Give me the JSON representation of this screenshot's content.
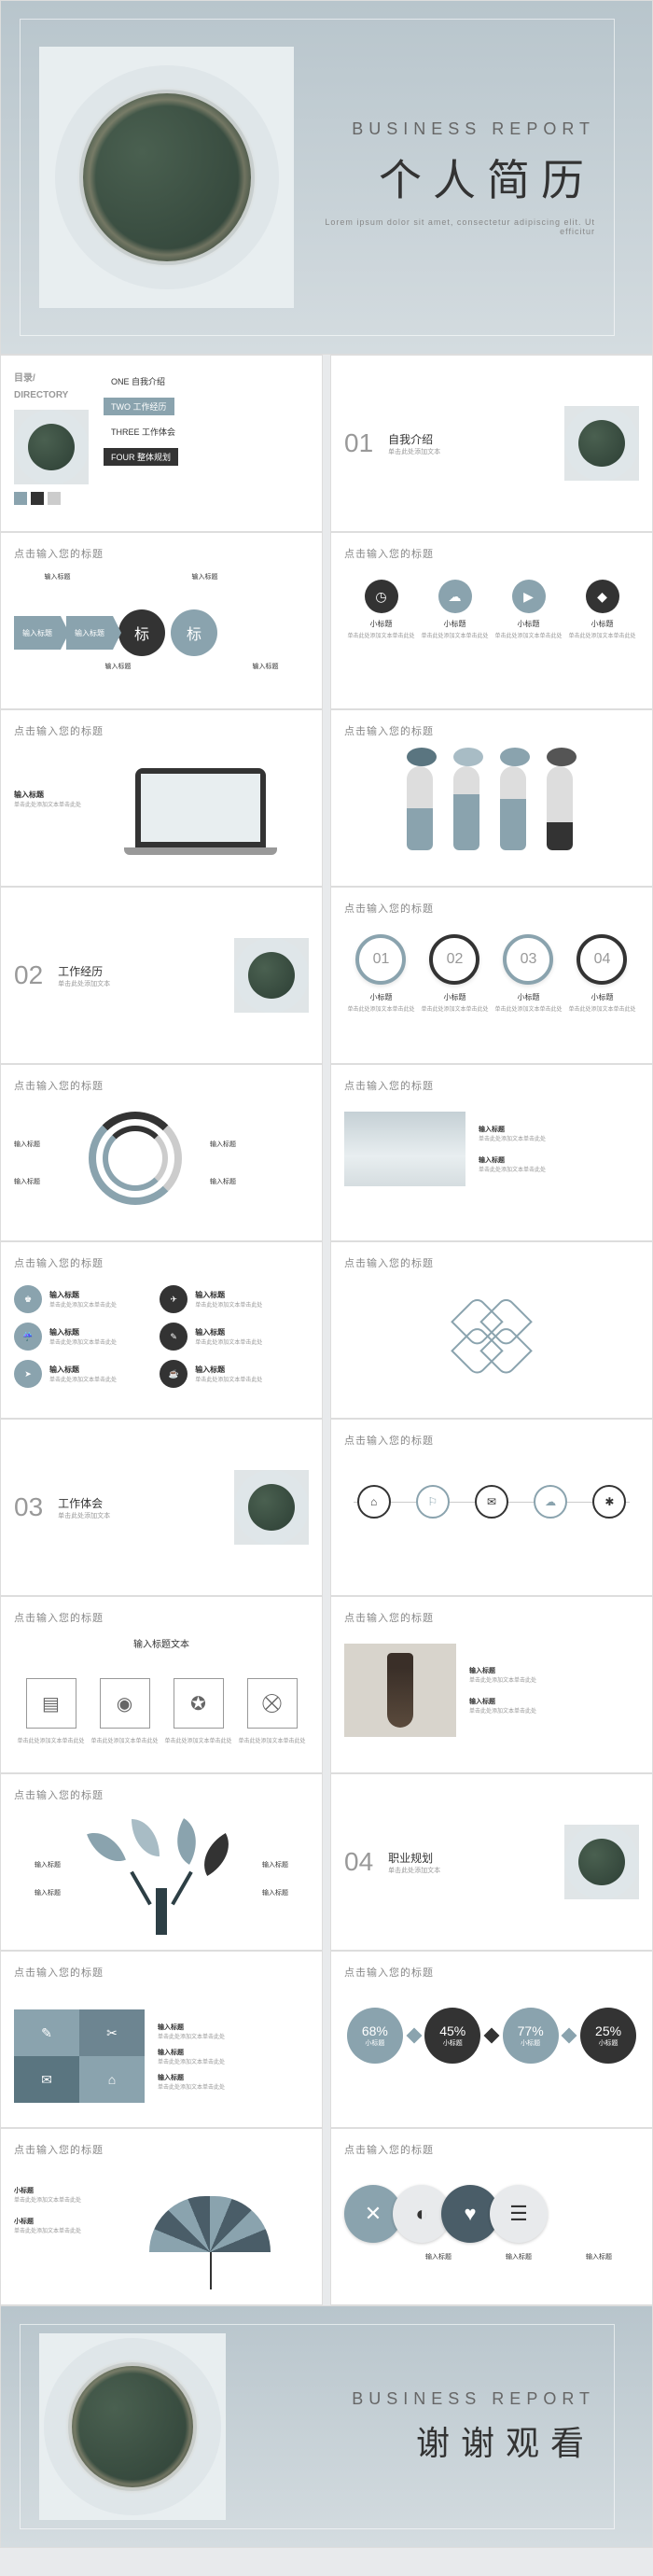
{
  "colors": {
    "primary": "#8aa3ae",
    "dark": "#333333",
    "light": "#cccccc",
    "bg": "#e8eaec"
  },
  "hero": {
    "subtitle": "BUSINESS REPORT",
    "title": "个人简历",
    "lorem": "Lorem ipsum dolor sit amet, consectetur adipiscing elit. Ut efficitur"
  },
  "directory": {
    "title": "目录/",
    "sub": "DIRECTORY",
    "items": [
      {
        "num": "ONE",
        "label": "自我介绍"
      },
      {
        "num": "TWO",
        "label": "工作经历"
      },
      {
        "num": "THREE",
        "label": "工作体会"
      },
      {
        "num": "FOUR",
        "label": "整体规划"
      }
    ]
  },
  "sections": [
    {
      "num": "01",
      "title": "自我介绍",
      "desc": "单击此处添加文本"
    },
    {
      "num": "02",
      "title": "工作经历",
      "desc": "单击此处添加文本"
    },
    {
      "num": "03",
      "title": "工作体会",
      "desc": "单击此处添加文本"
    },
    {
      "num": "04",
      "title": "职业规划",
      "desc": "单击此处添加文本"
    }
  ],
  "slideTitle": "点击输入您的标题",
  "labels": {
    "input": "输入标题",
    "desc": "单击此处添加文本单击此处",
    "small": "小标题",
    "textTitle": "输入标题文本"
  },
  "arrowFlow": [
    "输入标题",
    "输入标题",
    "标",
    "标"
  ],
  "iconRow1": [
    {
      "icon": "◷",
      "color": "#333333",
      "label": "小标题"
    },
    {
      "icon": "☁",
      "color": "#8aa3ae",
      "label": "小标题"
    },
    {
      "icon": "▶",
      "color": "#8aa3ae",
      "label": "小标题"
    },
    {
      "icon": "◆",
      "color": "#333333",
      "label": "小标题"
    }
  ],
  "pills": [
    {
      "height": 90,
      "fill": 45,
      "color": "#8aa3ae",
      "cap": "#5a7580"
    },
    {
      "height": 90,
      "fill": 60,
      "color": "#8aa3ae",
      "cap": "#a8bcc5"
    },
    {
      "height": 90,
      "fill": 55,
      "color": "#8aa3ae",
      "cap": "#8aa3ae"
    },
    {
      "height": 90,
      "fill": 30,
      "color": "#333333",
      "cap": "#555555"
    }
  ],
  "numCircles": [
    {
      "num": "01",
      "color": "#8aa3ae"
    },
    {
      "num": "02",
      "color": "#333333"
    },
    {
      "num": "03",
      "color": "#8aa3ae"
    },
    {
      "num": "04",
      "color": "#333333"
    }
  ],
  "iconGrid": [
    {
      "icon": "♚",
      "color": "#8aa3ae"
    },
    {
      "icon": "✈",
      "color": "#333333"
    },
    {
      "icon": "☔",
      "color": "#8aa3ae"
    },
    {
      "icon": "✎",
      "color": "#333333"
    },
    {
      "icon": "➤",
      "color": "#8aa3ae"
    },
    {
      "icon": "☕",
      "color": "#333333"
    }
  ],
  "timeline": [
    "⌂",
    "⚐",
    "✉",
    "☁",
    "✱"
  ],
  "boxIcons": [
    "▤",
    "◉",
    "✪",
    "⛒"
  ],
  "percentages": [
    {
      "val": "68%",
      "color": "#8aa3ae"
    },
    {
      "val": "45%",
      "color": "#333333"
    },
    {
      "val": "77%",
      "color": "#8aa3ae"
    },
    {
      "val": "25%",
      "color": "#333333"
    }
  ],
  "footer": {
    "subtitle": "BUSINESS REPORT",
    "title": "谢谢观看"
  }
}
